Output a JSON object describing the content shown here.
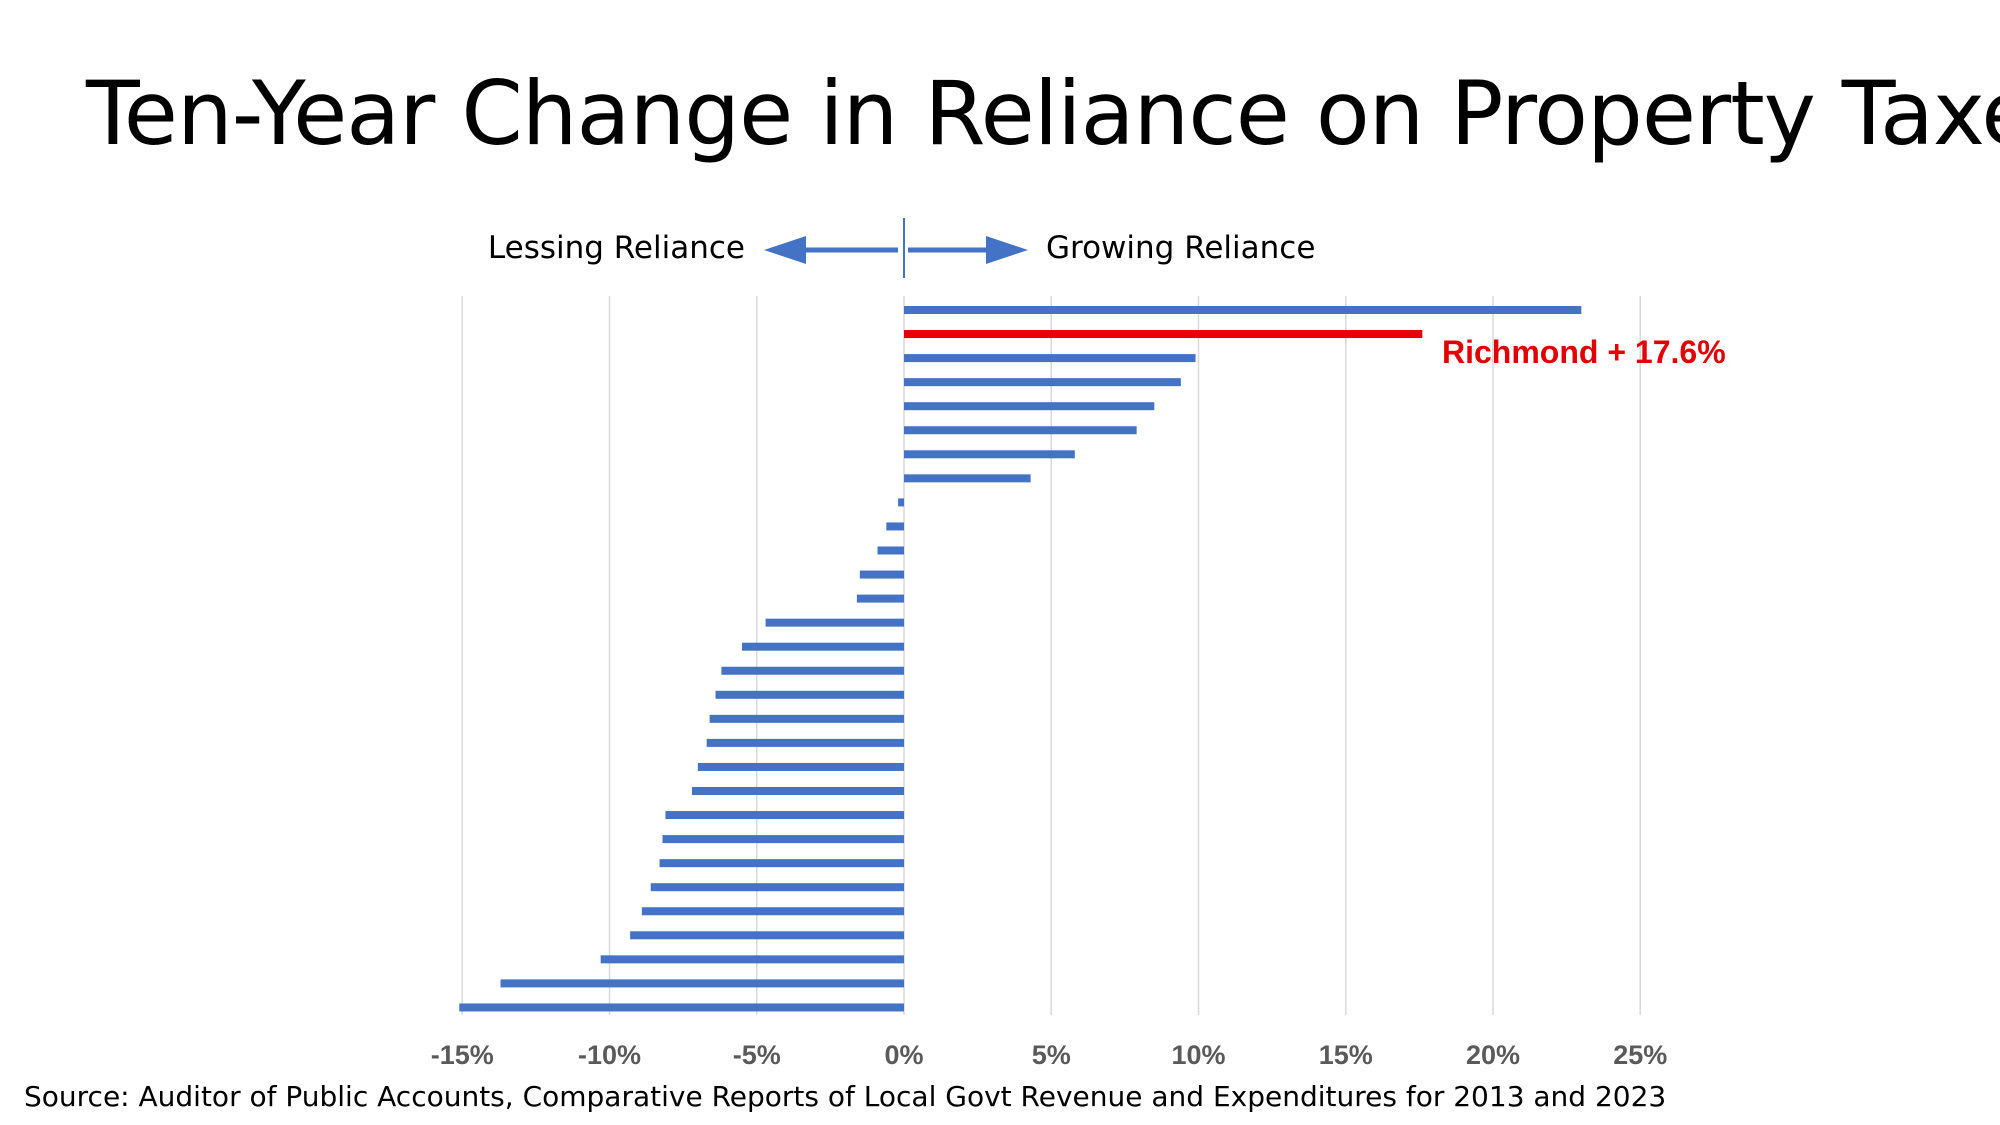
{
  "title": "Ten-Year Change in Reliance on Property Taxes",
  "source": "Source: Auditor of Public Accounts, Comparative Reports of Local Govt Revenue and Expenditures for 2013 and 2023",
  "direction_left": "Lessing Reliance",
  "direction_right": "Growing Reliance",
  "colors": {
    "bar": "#4472c4",
    "highlight": "#e30000",
    "grid": "#d9d9d9",
    "tick": "#5a5a5a"
  },
  "chart_data": {
    "type": "bar",
    "orientation": "horizontal",
    "x_unit": "%",
    "xlim": [
      -15,
      25
    ],
    "xticks": [
      "-15%",
      "-10%",
      "-5%",
      "0%",
      "5%",
      "10%",
      "15%",
      "20%",
      "25%"
    ],
    "xtick_values": [
      -15,
      -10,
      -5,
      0,
      5,
      10,
      15,
      20,
      25
    ],
    "grid": "vertical",
    "values": [
      23.0,
      17.6,
      9.9,
      9.4,
      8.5,
      7.9,
      5.8,
      4.3,
      -0.2,
      -0.6,
      -0.9,
      -1.5,
      -1.6,
      -4.7,
      -5.5,
      -6.2,
      -6.4,
      -6.6,
      -6.7,
      -7.0,
      -7.2,
      -8.1,
      -8.2,
      -8.3,
      -8.6,
      -8.9,
      -9.3,
      -10.3,
      -13.7,
      -15.1
    ],
    "highlight_index": 1,
    "annotation": "Richmond + 17.6%"
  }
}
